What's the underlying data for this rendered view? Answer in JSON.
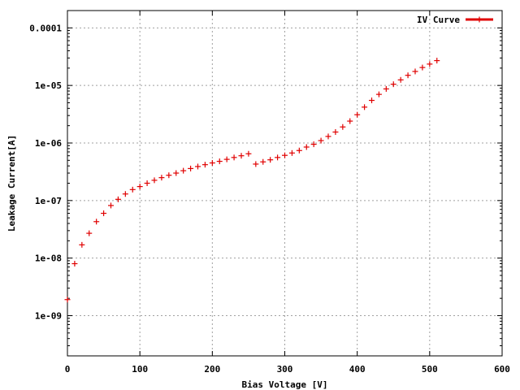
{
  "chart_data": {
    "type": "scatter",
    "title": "",
    "xlabel": "Bias Voltage [V]",
    "ylabel": "Leakage Current[A]",
    "xlim": [
      0,
      600
    ],
    "ylim": [
      2e-10,
      0.0002
    ],
    "y_scale": "log",
    "grid": true,
    "legend_position": "top-right",
    "x_ticks": [
      {
        "value": 0,
        "label": "0"
      },
      {
        "value": 100,
        "label": "100"
      },
      {
        "value": 200,
        "label": "200"
      },
      {
        "value": 300,
        "label": "300"
      },
      {
        "value": 400,
        "label": "400"
      },
      {
        "value": 500,
        "label": "500"
      },
      {
        "value": 600,
        "label": "600"
      }
    ],
    "y_ticks": [
      {
        "value": 1e-09,
        "label": "1e-09"
      },
      {
        "value": 1e-08,
        "label": "1e-08"
      },
      {
        "value": 1e-07,
        "label": "1e-07"
      },
      {
        "value": 1e-06,
        "label": "1e-06"
      },
      {
        "value": 1e-05,
        "label": "1e-05"
      },
      {
        "value": 0.0001,
        "label": "0.0001"
      }
    ],
    "series": [
      {
        "name": "IV Curve",
        "color": "#e00000",
        "marker": "plus",
        "x": [
          0,
          10,
          20,
          30,
          40,
          50,
          60,
          70,
          80,
          90,
          100,
          110,
          120,
          130,
          140,
          150,
          160,
          170,
          180,
          190,
          200,
          210,
          220,
          230,
          240,
          250,
          260,
          270,
          280,
          290,
          300,
          310,
          320,
          330,
          340,
          350,
          360,
          370,
          380,
          390,
          400,
          410,
          420,
          430,
          440,
          450,
          460,
          470,
          480,
          490,
          500,
          510
        ],
        "y": [
          1.9e-09,
          8e-09,
          1.7e-08,
          2.7e-08,
          4.3e-08,
          6e-08,
          8.2e-08,
          1.05e-07,
          1.3e-07,
          1.55e-07,
          1.75e-07,
          2e-07,
          2.25e-07,
          2.5e-07,
          2.75e-07,
          3e-07,
          3.3e-07,
          3.6e-07,
          3.9e-07,
          4.2e-07,
          4.5e-07,
          4.8e-07,
          5.2e-07,
          5.6e-07,
          6e-07,
          6.5e-07,
          4.3e-07,
          4.7e-07,
          5.1e-07,
          5.6e-07,
          6.1e-07,
          6.7e-07,
          7.4e-07,
          8.5e-07,
          9.5e-07,
          1.1e-06,
          1.3e-06,
          1.55e-06,
          1.9e-06,
          2.4e-06,
          3.1e-06,
          4.2e-06,
          5.5e-06,
          7e-06,
          8.7e-06,
          1.05e-05,
          1.25e-05,
          1.5e-05,
          1.75e-05,
          2.05e-05,
          2.35e-05,
          2.7e-05
        ]
      }
    ]
  }
}
